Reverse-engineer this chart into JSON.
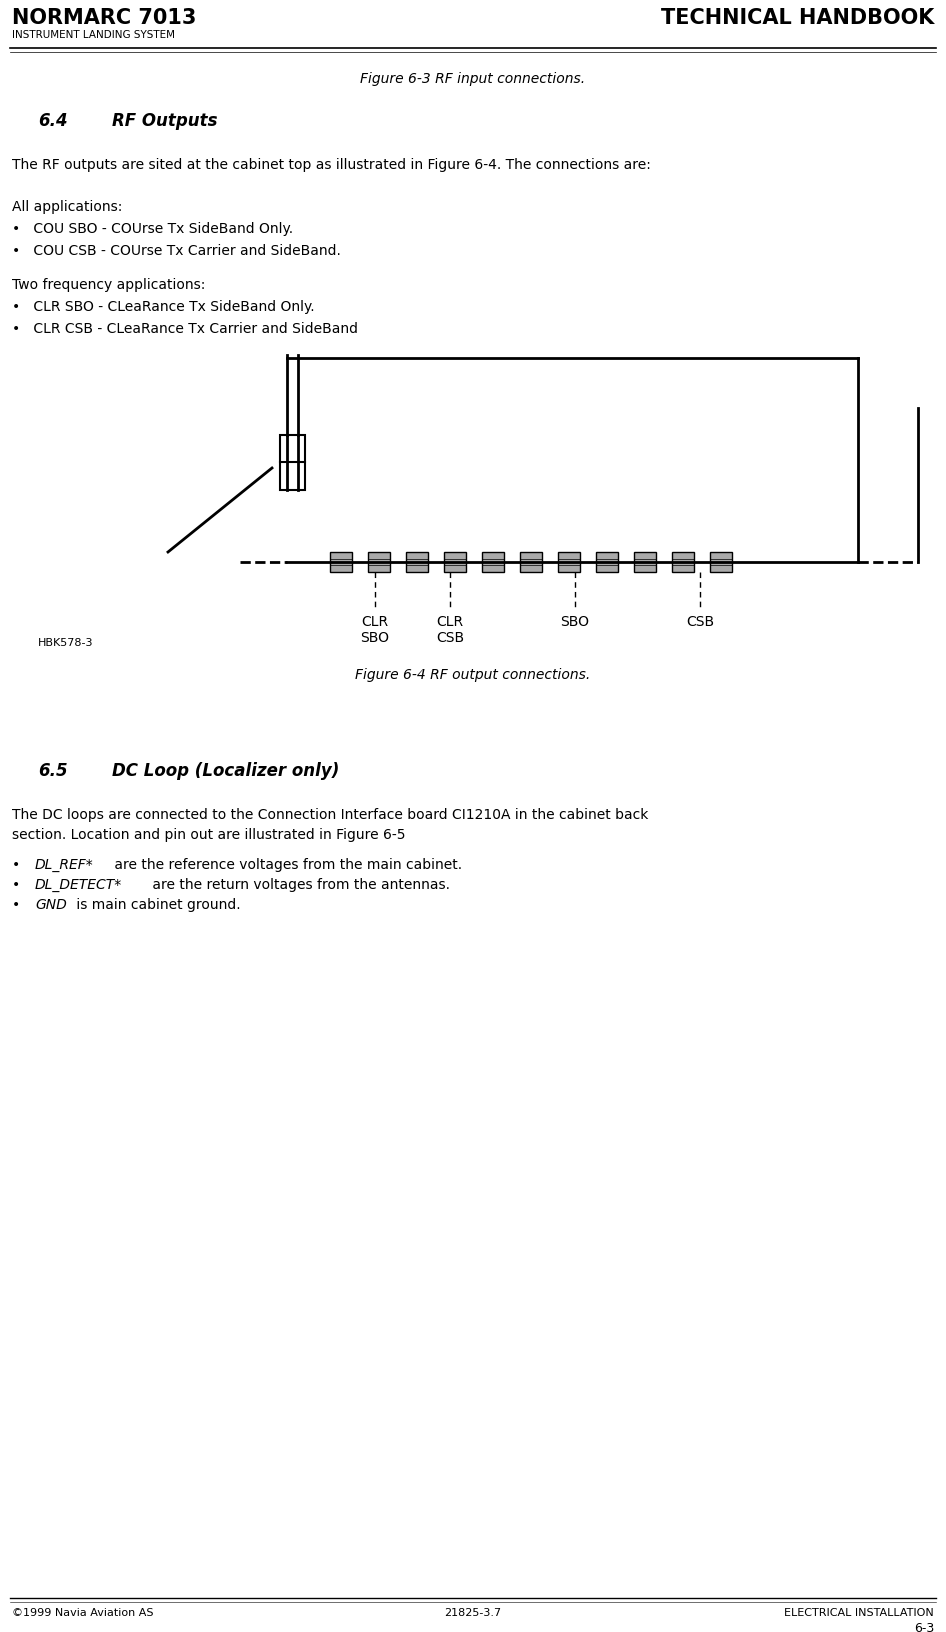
{
  "title_left": "NORMARC 7013",
  "title_right": "TECHNICAL HANDBOOK",
  "subtitle_left": "INSTRUMENT LANDING SYSTEM",
  "footer_left": "©1999 Navia Aviation AS",
  "footer_center": "21825-3.7",
  "footer_right": "ELECTRICAL INSTALLATION",
  "footer_page": "6-3",
  "fig_caption_top": "Figure 6-3 RF input connections.",
  "section_num": "6.4",
  "section_title": "RF Outputs",
  "body_text": "The RF outputs are sited at the cabinet top as illustrated in Figure 6-4. The connections are:",
  "all_apps_label": "All applications:",
  "bullet1": "•   COU SBO - COUrse Tx SideBand Only.",
  "bullet2": "•   COU CSB - COUrse Tx Carrier and SideBand.",
  "two_freq_label": "Two frequency applications:",
  "bullet3": "•   CLR SBO - CLeaRance Tx SideBand Only.",
  "bullet4": "•   CLR CSB - CLeaRance Tx Carrier and SideBand",
  "fig_caption_bottom": "Figure 6-4 RF output connections.",
  "hbk_label": "HBK578-3",
  "section2_num": "6.5",
  "section2_title": "DC Loop (Localizer only)",
  "body2_line1": "The DC loops are connected to the Connection Interface board CI1210A in the cabinet back",
  "body2_line2": "section. Location and pin out are illustrated in Figure 6-5",
  "bullet5_italic": "DL_REF*",
  "bullet5_rest": " are the reference voltages from the main cabinet.",
  "bullet6_italic": "DL_DETECT*",
  "bullet6_rest": " are the return voltages from the antennas.",
  "bullet7_italic": "GND",
  "bullet7_rest": " is main cabinet ground.",
  "bg_color": "#ffffff",
  "line_color": "#000000"
}
